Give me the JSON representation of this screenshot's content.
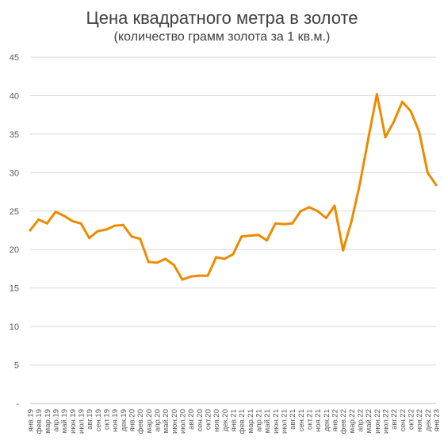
{
  "chart_data": {
    "type": "line",
    "title": "Цена квадратного метра в золоте",
    "subtitle": "(количество грамм золота за 1 кв.м.)",
    "xlabel": "",
    "ylabel": "",
    "ylim": [
      0,
      45
    ],
    "yticks": [
      0,
      5,
      10,
      15,
      20,
      25,
      30,
      35,
      40,
      45
    ],
    "ytick_labels": [
      "-",
      "5",
      "10",
      "15",
      "20",
      "25",
      "30",
      "35",
      "40",
      "45"
    ],
    "grid": "horizontal",
    "categories": [
      "янв.19",
      "фев.19",
      "мар.19",
      "апр.19",
      "май.19",
      "июн.19",
      "июл.19",
      "авг.19",
      "сен.19",
      "окт.19",
      "ноя.19",
      "дек.19",
      "янв.20",
      "фев.20",
      "мар.20",
      "апр.20",
      "май.20",
      "июн.20",
      "июл.20",
      "авг.20",
      "сен.20",
      "окт.20",
      "ноя.20",
      "дек.20",
      "янв.21",
      "фев.21",
      "мар.21",
      "апр.21",
      "май.21",
      "июн.21",
      "июл.21",
      "авг.21",
      "сен.21",
      "окт.21",
      "ноя.21",
      "дек.21",
      "янв.22",
      "фев.22",
      "мар.22",
      "апр.22",
      "май.22",
      "июн.22",
      "июл.22",
      "авг.22",
      "сен.22",
      "окт.22",
      "ноя.22",
      "дек.22",
      "янв.23"
    ],
    "series": [
      {
        "color": "#ED8B00",
        "values": [
          22.5,
          23.9,
          23.4,
          24.9,
          24.4,
          23.7,
          23.4,
          21.5,
          22.4,
          22.6,
          23.1,
          23.2,
          21.7,
          21.4,
          18.4,
          18.3,
          18.8,
          18.0,
          16.1,
          16.5,
          16.6,
          16.6,
          19.0,
          18.8,
          19.4,
          21.7,
          21.8,
          21.9,
          21.2,
          23.4,
          23.3,
          23.4,
          25.0,
          25.5,
          25.0,
          24.1,
          25.7,
          19.9,
          23.7,
          28.6,
          34.5,
          40.2,
          34.6,
          36.6,
          39.2,
          38.0,
          35.3,
          30.0,
          28.4
        ]
      }
    ]
  }
}
